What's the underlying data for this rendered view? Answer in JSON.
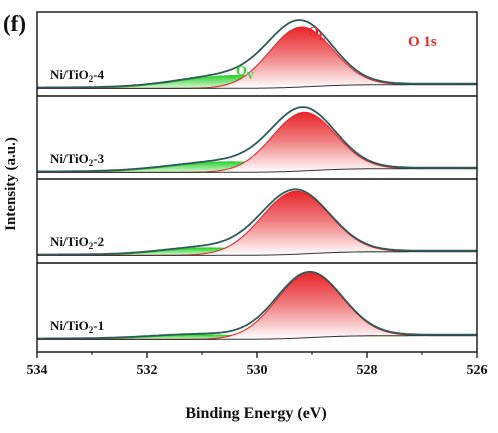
{
  "chart_data": {
    "type": "area",
    "panel_label": "(f)",
    "region_label": "O 1s",
    "xlabel": "Binding Energy (eV)",
    "ylabel": "Intensity (a.u.)",
    "xlim": [
      534,
      526
    ],
    "x_reversed": true,
    "xticks": [
      "534",
      "532",
      "530",
      "528",
      "526"
    ],
    "grid": false,
    "peak_labels": {
      "lattice": "O",
      "lattice_sub": "L",
      "vacancy": "O",
      "vacancy_sub": "V"
    },
    "colors": {
      "lattice_oxygen": "#e8262c",
      "oxygen_vacancy": "#2fd12f",
      "envelope": "#2e5a5a",
      "background": "#333333",
      "region_label": "#e8262c",
      "vacancy_label": "#2fd12f"
    },
    "panels": [
      {
        "sample": "Ni/TiO",
        "sample_sub": "2",
        "sample_suffix": "-4",
        "peaks": [
          {
            "component": "O_L",
            "center": 529.2,
            "fwhm": 1.35,
            "height": 0.8
          },
          {
            "component": "O_V",
            "center": 530.4,
            "fwhm": 2.3,
            "height": 0.17
          }
        ]
      },
      {
        "sample": "Ni/TiO",
        "sample_sub": "2",
        "sample_suffix": "-3",
        "peaks": [
          {
            "component": "O_L",
            "center": 529.15,
            "fwhm": 1.35,
            "height": 0.78
          },
          {
            "component": "O_V",
            "center": 530.5,
            "fwhm": 2.4,
            "height": 0.14
          }
        ]
      },
      {
        "sample": "Ni/TiO",
        "sample_sub": "2",
        "sample_suffix": "-2",
        "peaks": [
          {
            "component": "O_L",
            "center": 529.3,
            "fwhm": 1.45,
            "height": 0.84
          },
          {
            "component": "O_V",
            "center": 530.9,
            "fwhm": 1.9,
            "height": 0.1
          }
        ]
      },
      {
        "sample": "Ni/TiO",
        "sample_sub": "2",
        "sample_suffix": "-1",
        "peaks": [
          {
            "component": "O_L",
            "center": 529.05,
            "fwhm": 1.4,
            "height": 0.86
          },
          {
            "component": "O_V",
            "center": 531.0,
            "fwhm": 2.1,
            "height": 0.06
          }
        ]
      }
    ]
  }
}
